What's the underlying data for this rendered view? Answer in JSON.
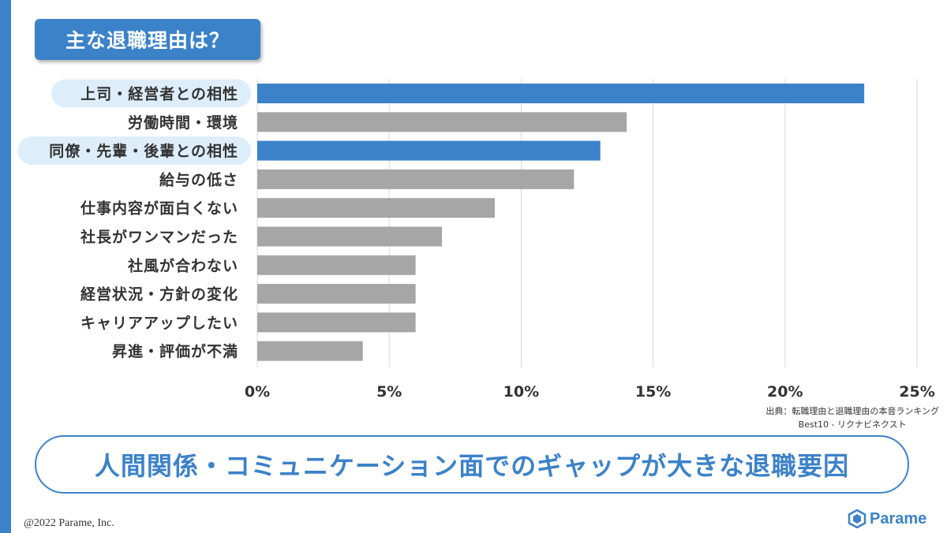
{
  "title": "主な退職理由は？",
  "conclusion": "人間関係・コミュニケーション面でのギャップが大きな退職要因",
  "source": {
    "line1": "出典：転職理由と退職理由の本音ランキング",
    "line2": "Best10 - リクナビネクスト"
  },
  "copyright": "@2022 Parame, Inc.",
  "logo_text": "Parame",
  "colors": {
    "accent": "#3b82c9",
    "bar_default": "#a6a6a6",
    "highlight_bg": "#ddeefa"
  },
  "chart_data": {
    "type": "bar",
    "orientation": "horizontal",
    "categories": [
      "上司・経営者との相性",
      "労働時間・環境",
      "同僚・先輩・後輩との相性",
      "給与の低さ",
      "仕事内容が面白くない",
      "社長がワンマンだった",
      "社風が合わない",
      "経営状況・方針の変化",
      "キャリアアップしたい",
      "昇進・評価が不満"
    ],
    "values": [
      23,
      14,
      13,
      12,
      9,
      7,
      6,
      6,
      6,
      4
    ],
    "highlighted": [
      true,
      false,
      true,
      false,
      false,
      false,
      false,
      false,
      false,
      false
    ],
    "xlim": [
      0,
      25
    ],
    "xticks": [
      0,
      5,
      10,
      15,
      20,
      25
    ],
    "tick_labels": [
      "0%",
      "5%",
      "10%",
      "15%",
      "20%",
      "25%"
    ],
    "grid": true,
    "legend": "none"
  }
}
